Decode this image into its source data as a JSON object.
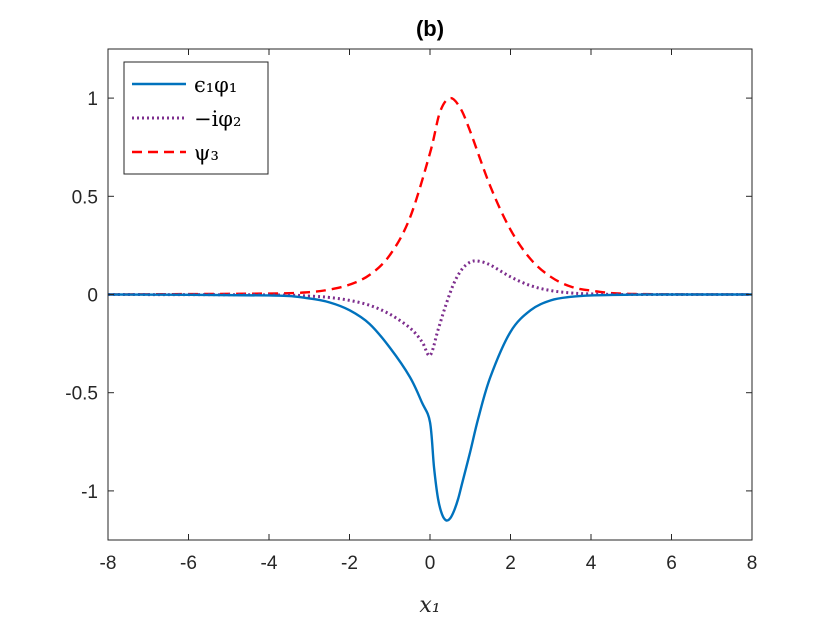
{
  "chart_data": {
    "type": "line",
    "title": "(b)",
    "xlabel": "x₁",
    "ylabel": "",
    "xlim": [
      -8,
      8
    ],
    "ylim": [
      -1.25,
      1.25
    ],
    "xticks": [
      -8,
      -6,
      -4,
      -2,
      0,
      2,
      4,
      6,
      8
    ],
    "xtick_labels": [
      "-8",
      "-6",
      "-4",
      "-2",
      "0",
      "2",
      "4",
      "6",
      "8"
    ],
    "yticks": [
      -1,
      -0.5,
      0,
      0.5,
      1
    ],
    "ytick_labels": [
      "-1",
      "-0.5",
      "0",
      "0.5",
      "1"
    ],
    "grid": false,
    "legend_position": "top-left",
    "series": [
      {
        "name": "ϵ₁φ₁",
        "color": "#0072BD",
        "style": "solid",
        "x": [
          -8,
          -4,
          -3,
          -2.5,
          -2,
          -1.5,
          -1,
          -0.5,
          -0.2,
          0,
          0.1,
          0.2,
          0.3,
          0.4,
          0.5,
          0.6,
          0.7,
          0.8,
          1,
          1.2,
          1.5,
          2,
          2.5,
          3,
          3.5,
          4,
          5,
          6,
          8
        ],
        "values": [
          0,
          -0.005,
          -0.02,
          -0.04,
          -0.08,
          -0.15,
          -0.27,
          -0.42,
          -0.55,
          -0.65,
          -0.88,
          -1.04,
          -1.12,
          -1.15,
          -1.14,
          -1.1,
          -1.04,
          -0.96,
          -0.8,
          -0.63,
          -0.42,
          -0.19,
          -0.08,
          -0.03,
          -0.012,
          -0.005,
          -0.001,
          0,
          0
        ]
      },
      {
        "name": "−iφ₂",
        "color": "#7E2F8E",
        "style": "dotted",
        "x": [
          -8,
          -4,
          -3,
          -2.5,
          -2,
          -1.5,
          -1,
          -0.5,
          -0.2,
          0,
          0.2,
          0.4,
          0.6,
          0.8,
          1,
          1.2,
          1.5,
          2,
          2.5,
          3,
          3.5,
          4,
          5,
          8
        ],
        "values": [
          0,
          -0.002,
          -0.008,
          -0.015,
          -0.03,
          -0.055,
          -0.1,
          -0.17,
          -0.24,
          -0.31,
          -0.18,
          -0.05,
          0.06,
          0.13,
          0.165,
          0.17,
          0.15,
          0.09,
          0.045,
          0.02,
          0.008,
          0.003,
          0,
          0
        ]
      },
      {
        "name": "ψ₃",
        "color": "#FF0000",
        "style": "dashed",
        "x": [
          -8,
          -4,
          -3,
          -2.5,
          -2,
          -1.5,
          -1,
          -0.5,
          0,
          0.25,
          0.5,
          0.75,
          1,
          1.5,
          2,
          2.5,
          3,
          3.5,
          4,
          5,
          8
        ],
        "values": [
          0,
          0.005,
          0.012,
          0.025,
          0.05,
          0.1,
          0.2,
          0.39,
          0.72,
          0.93,
          1.0,
          0.95,
          0.83,
          0.55,
          0.33,
          0.18,
          0.09,
          0.04,
          0.02,
          0.003,
          0
        ]
      }
    ]
  }
}
